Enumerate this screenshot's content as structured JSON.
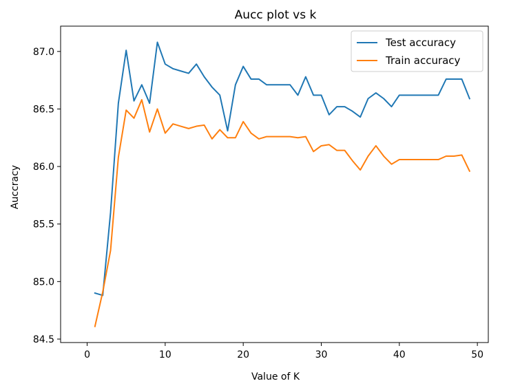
{
  "chart_data": {
    "type": "line",
    "title": "Aucc plot vs k",
    "xlabel": "Value of K",
    "ylabel": "Auccracy",
    "xlim": [
      -3.4,
      51.4
    ],
    "ylim": [
      84.47,
      87.22
    ],
    "xticks": [
      0,
      10,
      20,
      30,
      40,
      50
    ],
    "yticks": [
      84.5,
      85.0,
      85.5,
      86.0,
      86.5,
      87.0
    ],
    "grid": false,
    "legend_position": "upper-right",
    "x": [
      1,
      2,
      3,
      4,
      5,
      6,
      7,
      8,
      9,
      10,
      11,
      12,
      13,
      14,
      15,
      16,
      17,
      18,
      19,
      20,
      21,
      22,
      23,
      24,
      25,
      26,
      27,
      28,
      29,
      30,
      31,
      32,
      33,
      34,
      35,
      36,
      37,
      38,
      39,
      40,
      41,
      42,
      43,
      44,
      45,
      46,
      47,
      48,
      49
    ],
    "series": [
      {
        "name": "Test accuracy",
        "color": "#1f77b4",
        "values": [
          84.9,
          84.88,
          85.6,
          86.55,
          87.01,
          86.57,
          86.71,
          86.55,
          87.08,
          86.89,
          86.85,
          86.83,
          86.81,
          86.89,
          86.78,
          86.69,
          86.62,
          86.31,
          86.71,
          86.87,
          86.76,
          86.76,
          86.71,
          86.71,
          86.71,
          86.71,
          86.62,
          86.78,
          86.62,
          86.62,
          86.45,
          86.52,
          86.52,
          86.48,
          86.43,
          86.59,
          86.64,
          86.59,
          86.52,
          86.62,
          86.62,
          86.62,
          86.62,
          86.62,
          86.62,
          86.76,
          86.76,
          86.76,
          86.59
        ]
      },
      {
        "name": "Train accuracy",
        "color": "#ff7f0e",
        "values": [
          84.61,
          84.91,
          85.27,
          86.08,
          86.49,
          86.42,
          86.58,
          86.3,
          86.5,
          86.29,
          86.37,
          86.35,
          86.33,
          86.35,
          86.36,
          86.24,
          86.32,
          86.25,
          86.25,
          86.39,
          86.29,
          86.24,
          86.26,
          86.26,
          86.26,
          86.26,
          86.25,
          86.26,
          86.13,
          86.18,
          86.19,
          86.14,
          86.14,
          86.05,
          85.97,
          86.09,
          86.18,
          86.09,
          86.02,
          86.06,
          86.06,
          86.06,
          86.06,
          86.06,
          86.06,
          86.09,
          86.09,
          86.1,
          85.96
        ]
      }
    ]
  }
}
